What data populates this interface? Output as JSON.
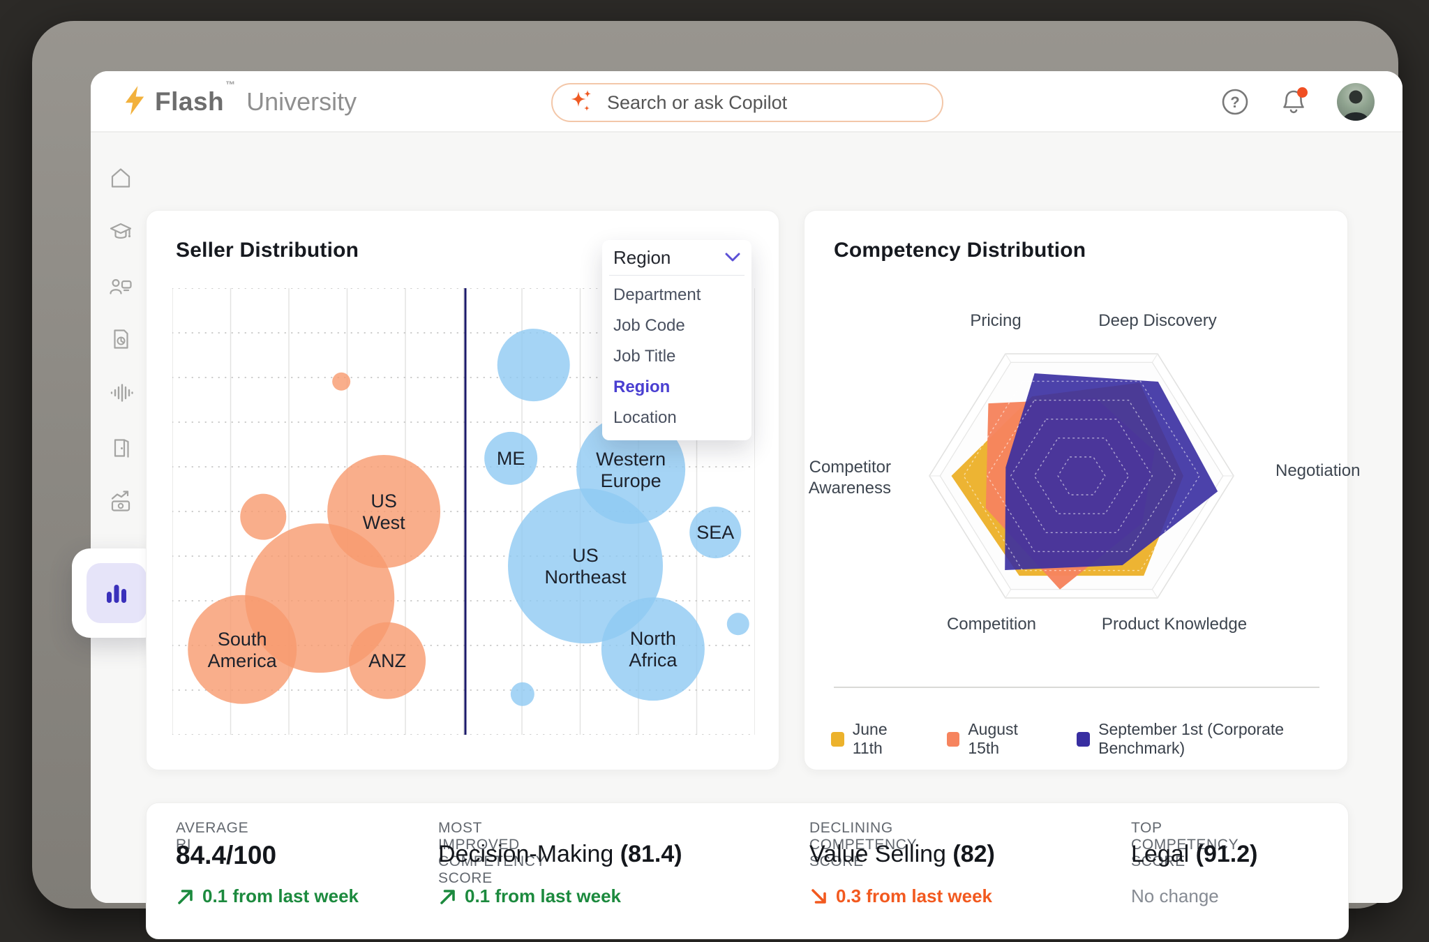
{
  "header": {
    "brand": "Flash",
    "brand_tm": "™",
    "brand_suffix": "University",
    "search_placeholder": "Search or ask Copilot"
  },
  "sidebar": {
    "items": [
      {
        "icon": "home-icon"
      },
      {
        "icon": "graduation-cap-icon"
      },
      {
        "icon": "trainer-icon"
      },
      {
        "icon": "report-document-icon"
      },
      {
        "icon": "voice-waveform-icon"
      },
      {
        "icon": "door-icon"
      },
      {
        "icon": "earnings-icon"
      }
    ],
    "active_item": {
      "icon": "bar-chart-icon"
    }
  },
  "seller_card": {
    "title": "Seller Distribution",
    "dropdown": {
      "selected": "Region",
      "options": [
        "Department",
        "Job Code",
        "Job Title",
        "Region",
        "Location"
      ],
      "active_option": "Region"
    }
  },
  "competency_card": {
    "title": "Competency Distribution"
  },
  "chart_data": [
    {
      "type": "scatter",
      "title": "Seller Distribution",
      "note": "bubble chart, unlabeled axes, dotted horizontal grid, solid vertical grid, navy divider line between orange (western) and blue (eastern) region groups",
      "divider_x_pct": 50.3,
      "grid_cols": 10,
      "grid_rows": 10,
      "groups": [
        {
          "name": "orange-regions",
          "color": "#F79A6E",
          "bubbles": [
            {
              "label": "",
              "x_pct": 29.0,
              "y_pct": 20.9,
              "r": 13
            },
            {
              "label": "",
              "x_pct": 15.6,
              "y_pct": 51.2,
              "r": 33
            },
            {
              "label": "US West",
              "lines": [
                "US",
                "West"
              ],
              "x_pct": 36.3,
              "y_pct": 50.0,
              "r": 81
            },
            {
              "label": "",
              "x_pct": 25.3,
              "y_pct": 69.4,
              "r": 107
            },
            {
              "label": "South America",
              "lines": [
                "South",
                "America"
              ],
              "x_pct": 12.0,
              "y_pct": 80.9,
              "r": 78
            },
            {
              "label": "ANZ",
              "lines": [
                "ANZ"
              ],
              "x_pct": 36.9,
              "y_pct": 83.4,
              "r": 55
            }
          ]
        },
        {
          "name": "blue-regions",
          "color": "#8FC9F2",
          "bubbles": [
            {
              "label": "",
              "x_pct": 62.0,
              "y_pct": 17.2,
              "r": 52
            },
            {
              "label": "ME",
              "lines": [
                "ME"
              ],
              "x_pct": 58.1,
              "y_pct": 38.1,
              "r": 38
            },
            {
              "label": "Western Europe",
              "lines": [
                "Western",
                "Europe"
              ],
              "x_pct": 78.7,
              "y_pct": 40.6,
              "r": 78
            },
            {
              "label": "SEA",
              "lines": [
                "SEA"
              ],
              "x_pct": 93.2,
              "y_pct": 54.7,
              "r": 37
            },
            {
              "label": "US Northeast",
              "lines": [
                "US",
                "Northeast"
              ],
              "x_pct": 70.9,
              "y_pct": 62.2,
              "r": 111
            },
            {
              "label": "North Africa",
              "lines": [
                "North",
                "Africa"
              ],
              "x_pct": 82.5,
              "y_pct": 80.8,
              "r": 74
            },
            {
              "label": "",
              "x_pct": 97.1,
              "y_pct": 75.2,
              "r": 16
            },
            {
              "label": "",
              "x_pct": 60.1,
              "y_pct": 90.9,
              "r": 17
            }
          ]
        }
      ]
    },
    {
      "type": "radar",
      "title": "Competency Distribution",
      "axes": [
        "Pricing",
        "Deep Discovery",
        "Negotiation",
        "Product Knowledge",
        "Competition",
        "Competitor Awareness"
      ],
      "range": [
        0,
        100
      ],
      "grid": "5 dashed concentric hexagons inside beveled white hexagon rim",
      "legend_position": "bottom",
      "series": [
        {
          "name": "June 11th",
          "color": "#ECB22C",
          "values": [
            70,
            82,
            72,
            88,
            88,
            92
          ]
        },
        {
          "name": "August 15th",
          "color": "#F6845E",
          "values": [
            86,
            60,
            55,
            56,
            88,
            72
          ]
        },
        {
          "name": "September 1st (Corporate Benchmark)",
          "color": "#382EA1",
          "values": [
            85,
            90,
            97,
            74,
            90,
            54
          ]
        }
      ]
    }
  ],
  "stats": [
    {
      "label": "AVERAGE RI",
      "value_name": "",
      "value_score": "84.4/100",
      "delta": "0.1 from last week",
      "direction": "up"
    },
    {
      "label": "MOST IMPROVED COMPETENCY SCORE",
      "value_name": "Decision-Making",
      "value_score": "(81.4)",
      "delta": "0.1 from last week",
      "direction": "up"
    },
    {
      "label": "DECLINING COMPETENCY SCORE",
      "value_name": "Value Selling",
      "value_score": "(82)",
      "delta": "0.3 from last week",
      "direction": "down"
    },
    {
      "label": "TOP COMPETENCY SCORE",
      "value_name": "Legal",
      "value_score": "(91.2)",
      "delta": "No change",
      "direction": "none"
    }
  ],
  "colors": {
    "accent_purple": "#4A3FD1",
    "bubble_orange": "#F79A6E",
    "bubble_blue": "#8FC9F2",
    "divider_navy": "#1C1A6B",
    "radar_yellow": "#ECB22C",
    "radar_orange": "#F6845E",
    "radar_indigo": "#382EA1",
    "delta_up_green": "#1C8A3E",
    "delta_down_orange": "#F2591F",
    "search_border": "#F3C7A9",
    "brand_bolt": "#F2B13C",
    "sparkle_orange": "#EF5A23"
  }
}
